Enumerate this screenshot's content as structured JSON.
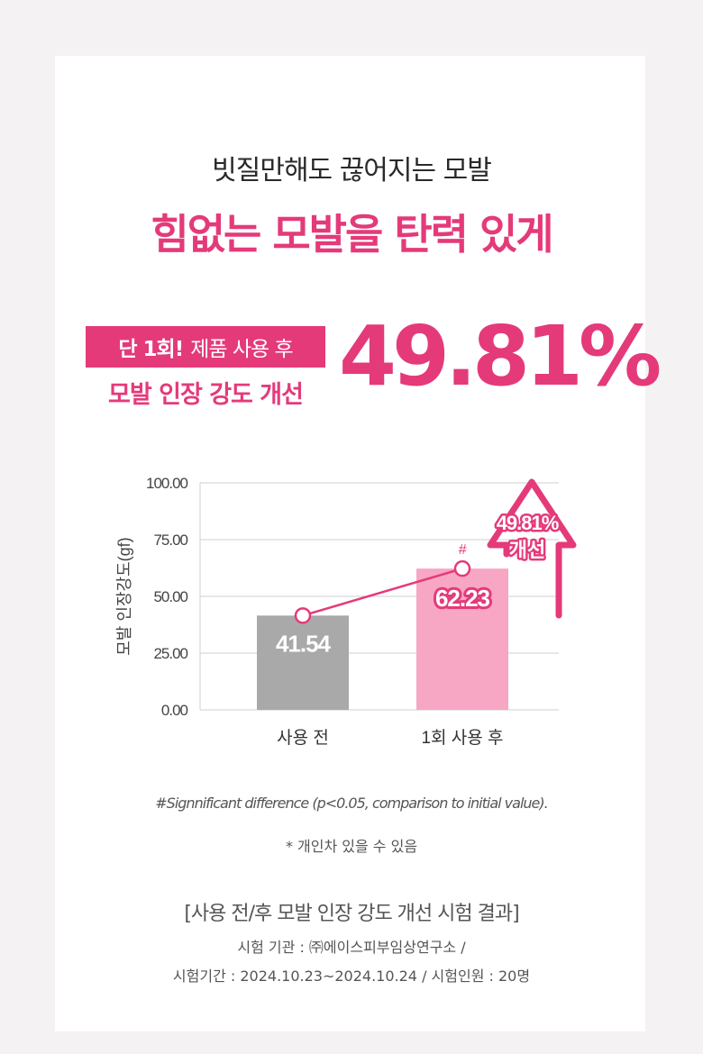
{
  "header": {
    "subtitle": "빗질만해도 끊어지는 모발",
    "headline": "힘없는 모발을 탄력 있게"
  },
  "claim": {
    "badge_bold": "단 1회!",
    "badge_rest": "제품 사용 후",
    "line2": "모발 인장 강도 개선",
    "percent": "49.81%"
  },
  "colors": {
    "accent": "#e43a7a",
    "bar_before": "#a9a9a9",
    "bar_after": "#f7a6c4"
  },
  "chart_data": {
    "type": "bar",
    "categories": [
      "사용 전",
      "1회 사용 후"
    ],
    "values": [
      41.54,
      62.23
    ],
    "value_labels": [
      "41.54",
      "62.23"
    ],
    "ylabel": "모발 인장강도(gf)",
    "ylim": [
      0,
      100
    ],
    "yticks": [
      "0.00",
      "25.00",
      "50.00",
      "75.00",
      "100.00"
    ],
    "ytick_values": [
      0,
      25,
      50,
      75,
      100
    ],
    "significance_marker": "#",
    "arrow_label_line1": "49.81%",
    "arrow_label_line2": "개선",
    "grid": true
  },
  "notes": {
    "significance": "#Signnificant difference (p<0.05, comparison to initial value).",
    "individual": "* 개인차 있을 수 있음"
  },
  "footer": {
    "title": "[사용 전/후 모발 인장 강도 개선 시험 결과]",
    "agency": "시험 기관 : ㈜에이스피부임상연구소 /",
    "period": "시험기간 : 2024.10.23~2024.10.24 / 시험인원 : 20명"
  }
}
